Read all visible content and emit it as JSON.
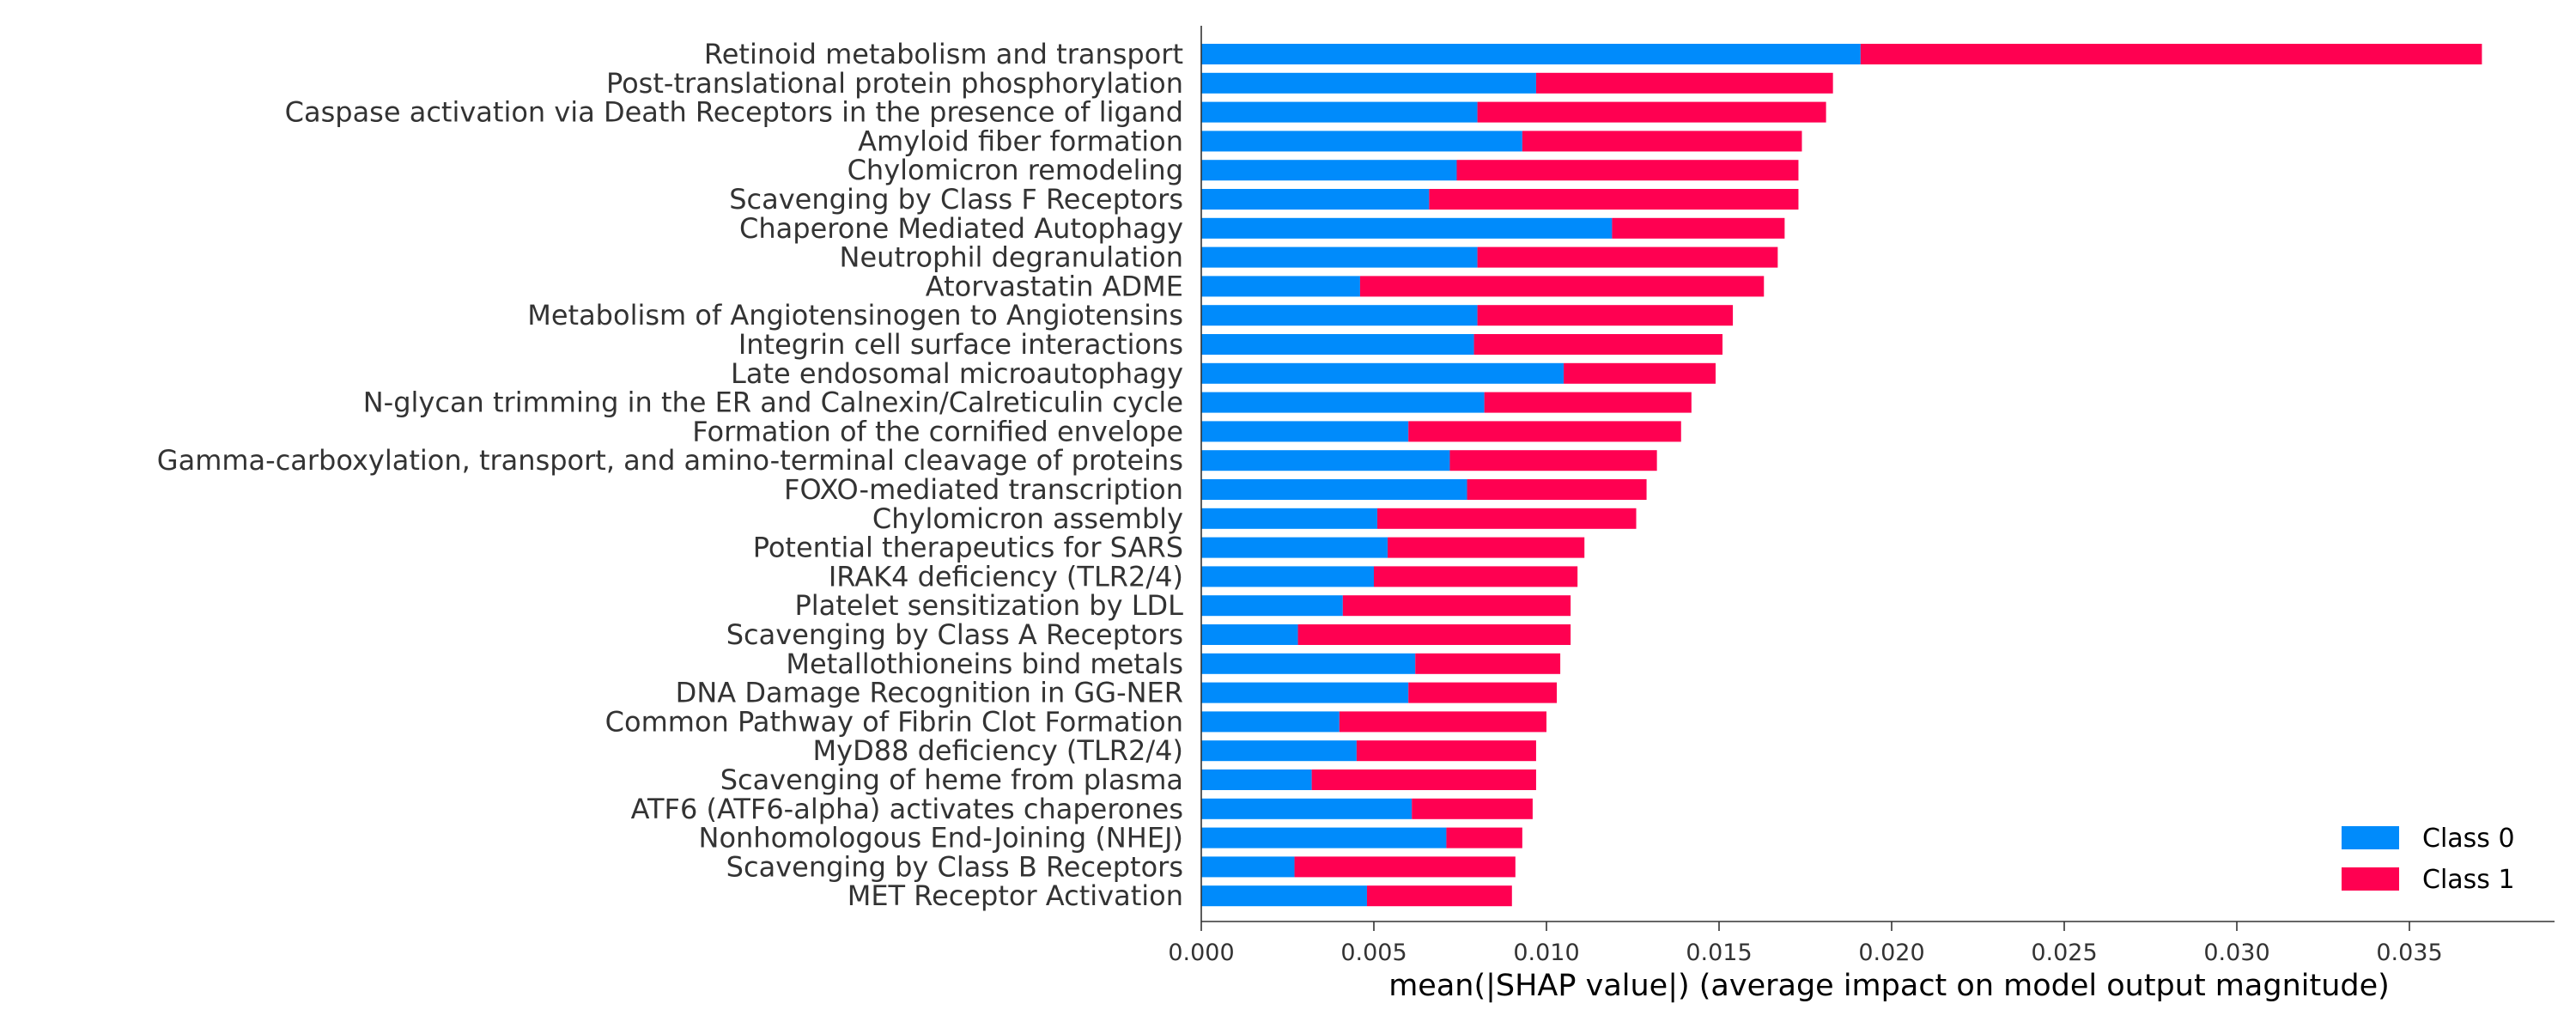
{
  "colors": {
    "class0": "#008bfb",
    "class1": "#ff0051",
    "axis": "#333333",
    "label": "#333333"
  },
  "chart_data": {
    "type": "bar",
    "orientation": "horizontal",
    "stacked": true,
    "title": "",
    "xlabel": "mean(|SHAP value|) (average impact on model output magnitude)",
    "ylabel": "",
    "xlim": [
      0.0,
      0.039
    ],
    "xticks": [
      "0.000",
      "0.005",
      "0.010",
      "0.015",
      "0.020",
      "0.025",
      "0.030",
      "0.035"
    ],
    "grid": false,
    "legend_position": "lower-right",
    "categories": [
      "Retinoid metabolism and transport",
      "Post-translational protein phosphorylation",
      "Caspase activation via Death Receptors in the presence of ligand",
      "Amyloid fiber formation",
      "Chylomicron remodeling",
      "Scavenging by Class F Receptors",
      "Chaperone Mediated Autophagy",
      "Neutrophil degranulation",
      "Atorvastatin ADME",
      "Metabolism of Angiotensinogen to Angiotensins",
      "Integrin cell surface interactions",
      "Late endosomal microautophagy",
      "N-glycan trimming in the ER and Calnexin/Calreticulin cycle",
      "Formation of the cornified envelope",
      "Gamma-carboxylation, transport, and amino-terminal cleavage of proteins",
      "FOXO-mediated transcription",
      "Chylomicron assembly",
      "Potential therapeutics for SARS",
      "IRAK4 deficiency (TLR2/4)",
      "Platelet sensitization by LDL",
      "Scavenging by Class A Receptors",
      "Metallothioneins bind metals",
      "DNA Damage Recognition in GG-NER",
      "Common Pathway of Fibrin Clot Formation",
      "MyD88 deficiency (TLR2/4)",
      "Scavenging of heme from plasma",
      "ATF6 (ATF6-alpha) activates chaperones",
      "Nonhomologous End-Joining (NHEJ)",
      "Scavenging by Class B Receptors",
      "MET Receptor Activation"
    ],
    "series": [
      {
        "name": "Class 0",
        "values": [
          0.0191,
          0.0097,
          0.008,
          0.0093,
          0.0074,
          0.0066,
          0.0119,
          0.008,
          0.0046,
          0.008,
          0.0079,
          0.0105,
          0.0082,
          0.006,
          0.0072,
          0.0077,
          0.0051,
          0.0054,
          0.005,
          0.0041,
          0.0028,
          0.0062,
          0.006,
          0.004,
          0.0045,
          0.0032,
          0.0061,
          0.0071,
          0.0027,
          0.0048
        ]
      },
      {
        "name": "Class 1",
        "values": [
          0.018,
          0.0086,
          0.0101,
          0.0081,
          0.0099,
          0.0107,
          0.005,
          0.0087,
          0.0117,
          0.0074,
          0.0072,
          0.0044,
          0.006,
          0.0079,
          0.006,
          0.0052,
          0.0075,
          0.0057,
          0.0059,
          0.0066,
          0.0079,
          0.0042,
          0.0043,
          0.006,
          0.0052,
          0.0065,
          0.0035,
          0.0022,
          0.0064,
          0.0042
        ]
      }
    ]
  }
}
